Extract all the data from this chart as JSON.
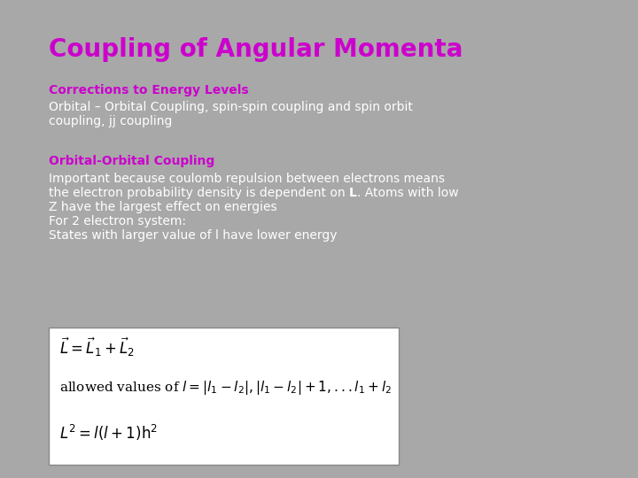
{
  "background_color": "#a8a8a8",
  "title": "Coupling of Angular Momenta",
  "title_color": "#cc00cc",
  "title_fontsize": 20,
  "subtitle_bold": "Corrections to Energy Levels",
  "subtitle_bold_color": "#cc00cc",
  "subtitle_bold_fontsize": 10,
  "subtitle_text_line1": "Orbital – Orbital Coupling, spin-spin coupling and spin orbit",
  "subtitle_text_line2": "coupling, jj coupling",
  "subtitle_text_color": "#ffffff",
  "subtitle_text_fontsize": 10,
  "section2_bold": "Orbital-Orbital Coupling",
  "section2_bold_color": "#cc00cc",
  "section2_bold_fontsize": 10,
  "body_line1": "Important because coulomb repulsion between electrons means",
  "body_line2a": "the electron probability density is dependent on ",
  "body_line2b": "L",
  "body_line2c": ". Atoms with low",
  "body_line3": "Z have the largest effect on energies",
  "body_line4": "For 2 electron system:",
  "body_line5": "States with larger value of l have lower energy",
  "body_color": "#ffffff",
  "body_fontsize": 10,
  "box_facecolor": "#ffffff",
  "box_edgecolor": "#888888",
  "eq_fontsize": 12,
  "eq_color": "#000000"
}
